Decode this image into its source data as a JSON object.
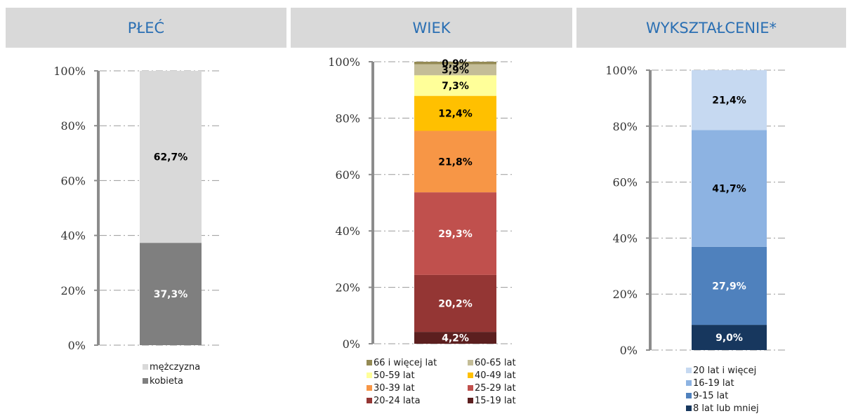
{
  "headers": [
    "PŁEĆ",
    "WIEK",
    "WYKSZTAŁCENIE*"
  ],
  "chart_data": [
    {
      "type": "bar",
      "title": "PŁEĆ",
      "ylim": [
        0,
        100
      ],
      "yticks": [
        "0%",
        "20%",
        "40%",
        "60%",
        "80%",
        "100%"
      ],
      "grid": true,
      "legend_position": "bottom",
      "series": [
        {
          "name": "kobieta",
          "value": 37.3,
          "label": "37,3%",
          "color": "#7f7f7f",
          "label_color": "#ffffff"
        },
        {
          "name": "mężczyzna",
          "value": 62.7,
          "label": "62,7%",
          "color": "#d9d9d9",
          "label_color": "#000000"
        }
      ],
      "legend_order": [
        "mężczyzna",
        "kobieta"
      ]
    },
    {
      "type": "bar",
      "title": "WIEK",
      "ylim": [
        0,
        100
      ],
      "yticks": [
        "0%",
        "20%",
        "40%",
        "60%",
        "80%",
        "100%"
      ],
      "grid": true,
      "legend_position": "bottom",
      "series": [
        {
          "name": "15-19 lat",
          "value": 4.2,
          "label": "4,2%",
          "color": "#5c1f1f",
          "label_color": "#ffffff"
        },
        {
          "name": "20-24 lata",
          "value": 20.2,
          "label": "20,2%",
          "color": "#943634",
          "label_color": "#ffffff"
        },
        {
          "name": "25-29 lat",
          "value": 29.3,
          "label": "29,3%",
          "color": "#c0504d",
          "label_color": "#ffffff"
        },
        {
          "name": "30-39 lat",
          "value": 21.8,
          "label": "21,8%",
          "color": "#f79646",
          "label_color": "#000000"
        },
        {
          "name": "40-49 lat",
          "value": 12.4,
          "label": "12,4%",
          "color": "#ffc000",
          "label_color": "#000000"
        },
        {
          "name": "50-59 lat",
          "value": 7.3,
          "label": "7,3%",
          "color": "#ffff99",
          "label_color": "#000000"
        },
        {
          "name": "60-65 lat",
          "value": 3.9,
          "label": "3,9%",
          "color": "#c4bd97",
          "label_color": "#000000"
        },
        {
          "name": "66 i więcej lat",
          "value": 0.9,
          "label": "0,9%",
          "color": "#948a54",
          "label_color": "#000000"
        }
      ],
      "legend_order": [
        "66 i więcej lat",
        "60-65 lat",
        "50-59 lat",
        "40-49 lat",
        "30-39 lat",
        "25-29 lat",
        "20-24 lata",
        "15-19 lat"
      ]
    },
    {
      "type": "bar",
      "title": "WYKSZTAŁCENIE*",
      "ylim": [
        0,
        100
      ],
      "yticks": [
        "0%",
        "20%",
        "40%",
        "60%",
        "80%",
        "100%"
      ],
      "grid": true,
      "legend_position": "bottom",
      "series": [
        {
          "name": "8 lat lub mniej",
          "value": 9.0,
          "label": "9,0%",
          "color": "#17375e",
          "label_color": "#ffffff"
        },
        {
          "name": "9-15 lat",
          "value": 27.9,
          "label": "27,9%",
          "color": "#4f81bd",
          "label_color": "#ffffff"
        },
        {
          "name": "16-19 lat",
          "value": 41.7,
          "label": "41,7%",
          "color": "#8db3e2",
          "label_color": "#000000"
        },
        {
          "name": "20 lat i więcej",
          "value": 21.4,
          "label": "21,4%",
          "color": "#c6d9f1",
          "label_color": "#000000"
        }
      ],
      "legend_order": [
        "20 lat i więcej",
        "16-19 lat",
        "9-15 lat",
        "8 lat lub mniej"
      ]
    }
  ]
}
